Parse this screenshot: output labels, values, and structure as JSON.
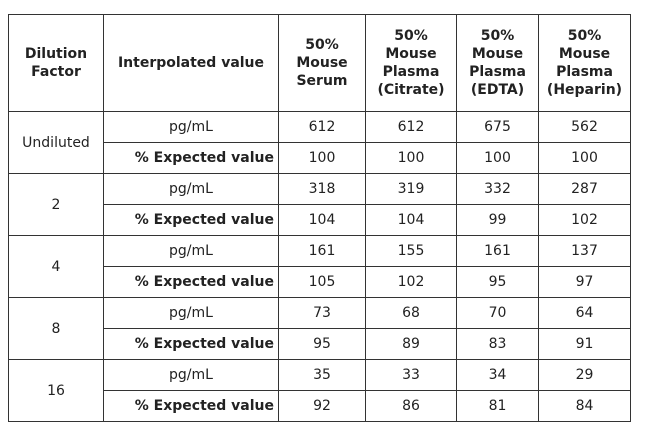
{
  "table": {
    "header": [
      [
        "Dilution",
        "Factor"
      ],
      [
        "Interpolated value"
      ],
      [
        "50%",
        "Mouse",
        "Serum"
      ],
      [
        "50%",
        "Mouse",
        "Plasma",
        "(Citrate)"
      ],
      [
        "50%",
        "Mouse",
        "Plasma",
        "(EDTA)"
      ],
      [
        "50%",
        "Mouse",
        "Plasma",
        "(Heparin)"
      ]
    ],
    "groups": [
      {
        "dilution": "Undiluted",
        "rows": [
          [
            "pg/mL",
            612,
            612,
            675,
            562
          ],
          [
            "% Expected value",
            100,
            100,
            100,
            100
          ]
        ]
      },
      {
        "dilution": "2",
        "rows": [
          [
            "pg/mL",
            318,
            319,
            332,
            287
          ],
          [
            "% Expected value",
            104,
            104,
            99,
            102
          ]
        ]
      },
      {
        "dilution": "4",
        "rows": [
          [
            "pg/mL",
            161,
            155,
            161,
            137
          ],
          [
            "% Expected value",
            105,
            102,
            95,
            97
          ]
        ]
      },
      {
        "dilution": "8",
        "rows": [
          [
            "pg/mL",
            73,
            68,
            70,
            64
          ],
          [
            "% Expected value",
            95,
            89,
            83,
            91
          ]
        ]
      },
      {
        "dilution": "16",
        "rows": [
          [
            "pg/mL",
            35,
            33,
            34,
            29
          ],
          [
            "% Expected value",
            92,
            86,
            81,
            84
          ]
        ]
      }
    ]
  }
}
